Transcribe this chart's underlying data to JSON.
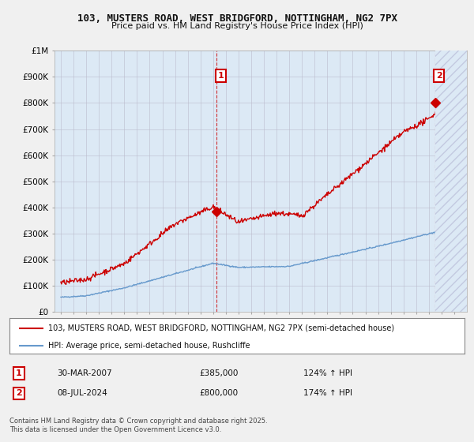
{
  "title": "103, MUSTERS ROAD, WEST BRIDGFORD, NOTTINGHAM, NG2 7PX",
  "subtitle": "Price paid vs. HM Land Registry's House Price Index (HPI)",
  "red_label": "103, MUSTERS ROAD, WEST BRIDGFORD, NOTTINGHAM, NG2 7PX (semi-detached house)",
  "blue_label": "HPI: Average price, semi-detached house, Rushcliffe",
  "footnote": "Contains HM Land Registry data © Crown copyright and database right 2025.\nThis data is licensed under the Open Government Licence v3.0.",
  "transaction1_date": "30-MAR-2007",
  "transaction1_price": "£385,000",
  "transaction1_hpi": "124% ↑ HPI",
  "transaction2_date": "08-JUL-2024",
  "transaction2_price": "£800,000",
  "transaction2_hpi": "174% ↑ HPI",
  "ylim": [
    0,
    1000000
  ],
  "yticks": [
    0,
    100000,
    200000,
    300000,
    400000,
    500000,
    600000,
    700000,
    800000,
    900000,
    1000000
  ],
  "ytick_labels": [
    "£0",
    "£100K",
    "£200K",
    "£300K",
    "£400K",
    "£500K",
    "£600K",
    "£700K",
    "£800K",
    "£900K",
    "£1M"
  ],
  "background_color": "#f0f0f0",
  "plot_bg_color": "#dce9f5",
  "red_color": "#cc0000",
  "blue_color": "#6699cc",
  "vline1_x": 2007.25,
  "vline2_x": 2024.52,
  "marker1_y": 385000,
  "marker2_y": 800000,
  "xlim": [
    1994.5,
    2027
  ],
  "xticks": [
    1995,
    1996,
    1997,
    1998,
    1999,
    2000,
    2001,
    2002,
    2003,
    2004,
    2005,
    2006,
    2007,
    2008,
    2009,
    2010,
    2011,
    2012,
    2013,
    2014,
    2015,
    2016,
    2017,
    2018,
    2019,
    2020,
    2021,
    2022,
    2023,
    2024,
    2025,
    2026
  ]
}
